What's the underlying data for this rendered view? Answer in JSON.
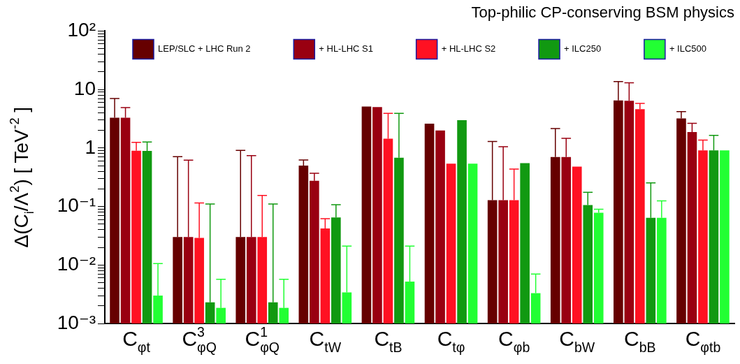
{
  "chart_data": {
    "type": "bar",
    "title": "Top-philic CP-conserving BSM physics",
    "ylabel": "Δ(C$_{i}$/Λ$^{2}$) [ TeV$^{-2}$ ]",
    "categories": [
      "C$_{φt}$",
      "C$^{3}$$_{φQ}$",
      "C$^{1}$$_{φQ}$",
      "C$_{tW}$",
      "C$_{tB}$",
      "C$_{tφ}$",
      "C$_{φb}$",
      "C$_{bW}$",
      "C$_{bB}$",
      "C$_{φtb}$"
    ],
    "log": "y",
    "legend": "top",
    "grid": false,
    "ylim": [
      0.001,
      100
    ],
    "yticks": [
      {
        "value": 0.001,
        "label": "10⁻³"
      },
      {
        "value": 0.002,
        "label": null
      },
      {
        "value": 0.003,
        "label": null
      },
      {
        "value": 0.004,
        "label": null
      },
      {
        "value": 0.005,
        "label": null
      },
      {
        "value": 0.006,
        "label": null
      },
      {
        "value": 0.007,
        "label": null
      },
      {
        "value": 0.008,
        "label": null
      },
      {
        "value": 0.009,
        "label": null
      },
      {
        "value": 0.01,
        "label": "10⁻²"
      },
      {
        "value": 0.02,
        "label": null
      },
      {
        "value": 0.03,
        "label": null
      },
      {
        "value": 0.04,
        "label": null
      },
      {
        "value": 0.05,
        "label": null
      },
      {
        "value": 0.06,
        "label": null
      },
      {
        "value": 0.07,
        "label": null
      },
      {
        "value": 0.08,
        "label": null
      },
      {
        "value": 0.09,
        "label": null
      },
      {
        "value": 0.1,
        "label": "10⁻¹"
      },
      {
        "value": 0.2,
        "label": null
      },
      {
        "value": 0.3,
        "label": null
      },
      {
        "value": 0.4,
        "label": null
      },
      {
        "value": 0.5,
        "label": null
      },
      {
        "value": 0.6,
        "label": null
      },
      {
        "value": 0.7,
        "label": null
      },
      {
        "value": 0.8,
        "label": null
      },
      {
        "value": 0.9,
        "label": null
      },
      {
        "value": 1,
        "label": "1"
      },
      {
        "value": 2,
        "label": null
      },
      {
        "value": 3,
        "label": null
      },
      {
        "value": 4,
        "label": null
      },
      {
        "value": 5,
        "label": null
      },
      {
        "value": 6,
        "label": null
      },
      {
        "value": 7,
        "label": null
      },
      {
        "value": 8,
        "label": null
      },
      {
        "value": 9,
        "label": null
      },
      {
        "value": 10,
        "label": "10"
      },
      {
        "value": 20,
        "label": null
      },
      {
        "value": 30,
        "label": null
      },
      {
        "value": 40,
        "label": null
      },
      {
        "value": 50,
        "label": null
      },
      {
        "value": 60,
        "label": null
      },
      {
        "value": 70,
        "label": null
      },
      {
        "value": 80,
        "label": null
      },
      {
        "value": 90,
        "label": null
      },
      {
        "value": 100,
        "label": "10²"
      }
    ],
    "series": [
      {
        "name": "LEP/SLC + LHC Run 2",
        "color": "#660000",
        "values": [
          3.3,
          0.03,
          0.03,
          0.5,
          5.1,
          2.6,
          0.128,
          0.7,
          6.5,
          3.2
        ],
        "errors": [
          [
            3.3,
            7.0
          ],
          [
            0.03,
            0.71
          ],
          [
            0.03,
            0.91
          ],
          [
            0.5,
            0.625
          ],
          null,
          null,
          [
            0.128,
            1.29
          ],
          [
            0.7,
            2.15
          ],
          [
            6.5,
            13.7
          ],
          [
            3.2,
            4.2
          ]
        ]
      },
      {
        "name": "+ HL-LHC S1",
        "color": "#990011",
        "values": [
          3.3,
          0.03,
          0.03,
          0.275,
          5.0,
          2.0,
          0.128,
          0.7,
          6.4,
          1.88
        ],
        "errors": [
          [
            3.3,
            4.9
          ],
          [
            0.03,
            0.62
          ],
          [
            0.03,
            0.74
          ],
          [
            0.275,
            0.37
          ],
          null,
          null,
          [
            0.128,
            1.05
          ],
          [
            0.7,
            1.46
          ],
          [
            6.4,
            13
          ],
          [
            1.88,
            2.65
          ]
        ]
      },
      {
        "name": "+ HL-LHC S2",
        "color": "#ff1122",
        "values": [
          0.9,
          0.029,
          0.03,
          0.042,
          1.44,
          0.54,
          0.128,
          0.48,
          4.6,
          0.91
        ],
        "errors": [
          [
            0.9,
            1.25
          ],
          [
            0.029,
            0.115
          ],
          [
            0.03,
            0.154
          ],
          [
            0.042,
            0.062
          ],
          [
            1.44,
            3.9
          ],
          null,
          [
            0.128,
            0.435
          ],
          null,
          [
            4.6,
            5.8
          ],
          [
            0.91,
            1.37
          ]
        ]
      },
      {
        "name": "+ ILC250",
        "color": "#119911",
        "values": [
          0.89,
          0.0023,
          0.0023,
          0.065,
          0.68,
          3.0,
          0.55,
          0.106,
          0.064,
          0.91
        ],
        "errors": [
          [
            0.89,
            1.27
          ],
          [
            0.0023,
            0.11
          ],
          [
            0.0023,
            0.11
          ],
          [
            0.065,
            0.107
          ],
          [
            0.68,
            3.9
          ],
          null,
          null,
          [
            0.106,
            0.175
          ],
          [
            0.064,
            0.254
          ],
          [
            0.91,
            1.64
          ]
        ]
      },
      {
        "name": "+ ILC500",
        "color": "#22ff33",
        "values": [
          0.003,
          0.00185,
          0.00185,
          0.0034,
          0.0052,
          0.54,
          0.0033,
          0.078,
          0.064,
          0.91
        ],
        "errors": [
          [
            0.003,
            0.0106
          ],
          [
            0.00185,
            0.0057
          ],
          [
            0.00185,
            0.0057
          ],
          [
            0.0034,
            0.021
          ],
          [
            0.0052,
            0.021
          ],
          null,
          [
            0.0033,
            0.007
          ],
          [
            0.078,
            0.09
          ],
          [
            0.064,
            0.125
          ],
          null
        ]
      }
    ]
  }
}
